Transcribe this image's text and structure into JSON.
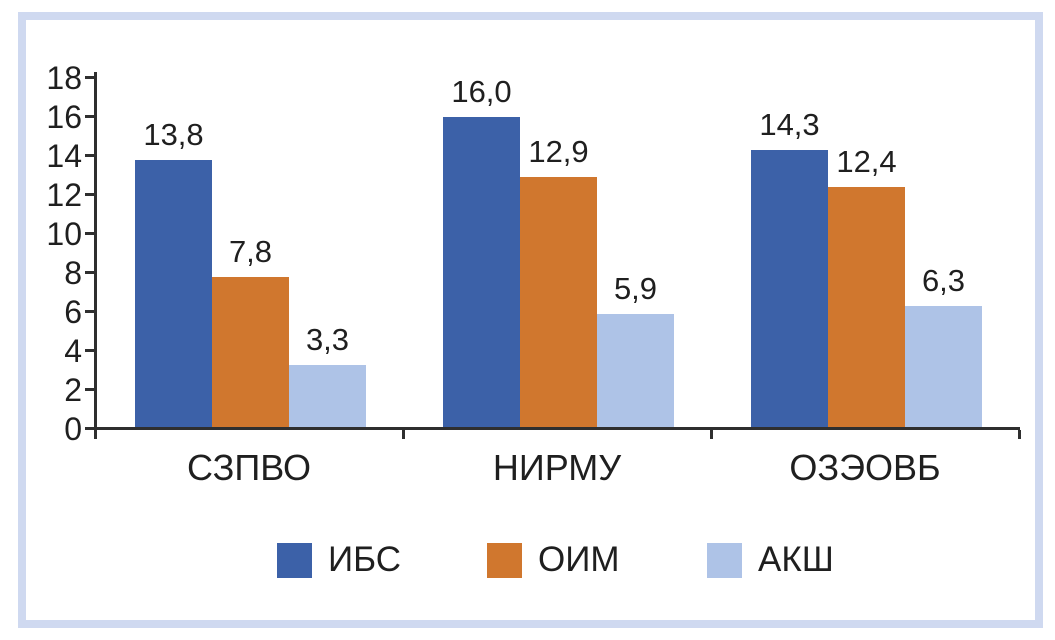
{
  "chart_data": {
    "type": "bar",
    "title": "",
    "xlabel": "",
    "ylabel": "",
    "categories": [
      "СЗПВО",
      "НИРМУ",
      "ОЗЭОВБ"
    ],
    "series": [
      {
        "name": "ИБС",
        "color": "#3c61a8",
        "values": [
          13.8,
          16.0,
          14.3
        ],
        "value_labels": [
          "13,8",
          "16,0",
          "14,3"
        ]
      },
      {
        "name": "ОИМ",
        "color": "#d0772e",
        "values": [
          7.8,
          12.9,
          12.4
        ],
        "value_labels": [
          "7,8",
          "12,9",
          "12,4"
        ]
      },
      {
        "name": "АКШ",
        "color": "#aec3e7",
        "values": [
          3.3,
          5.9,
          6.3
        ],
        "value_labels": [
          "3,3",
          "5,9",
          "6,3"
        ]
      }
    ],
    "yaxis": {
      "min": 0,
      "max": 18,
      "step": 2,
      "tick_labels": [
        "0",
        "2",
        "4",
        "6",
        "8",
        "10",
        "12",
        "14",
        "16",
        "18"
      ]
    },
    "legend": {
      "position": "bottom",
      "items": [
        {
          "label": "ИБС",
          "color": "#3c61a8"
        },
        {
          "label": "ОИМ",
          "color": "#d0772e"
        },
        {
          "label": "АКШ",
          "color": "#aec3e7"
        }
      ]
    },
    "grid": false,
    "decimal_separator": ","
  },
  "colors": {
    "frame_border": "#cfd9f0",
    "axis": "#2f2f2f",
    "text": "#1f1f1f",
    "background": "#ffffff"
  }
}
